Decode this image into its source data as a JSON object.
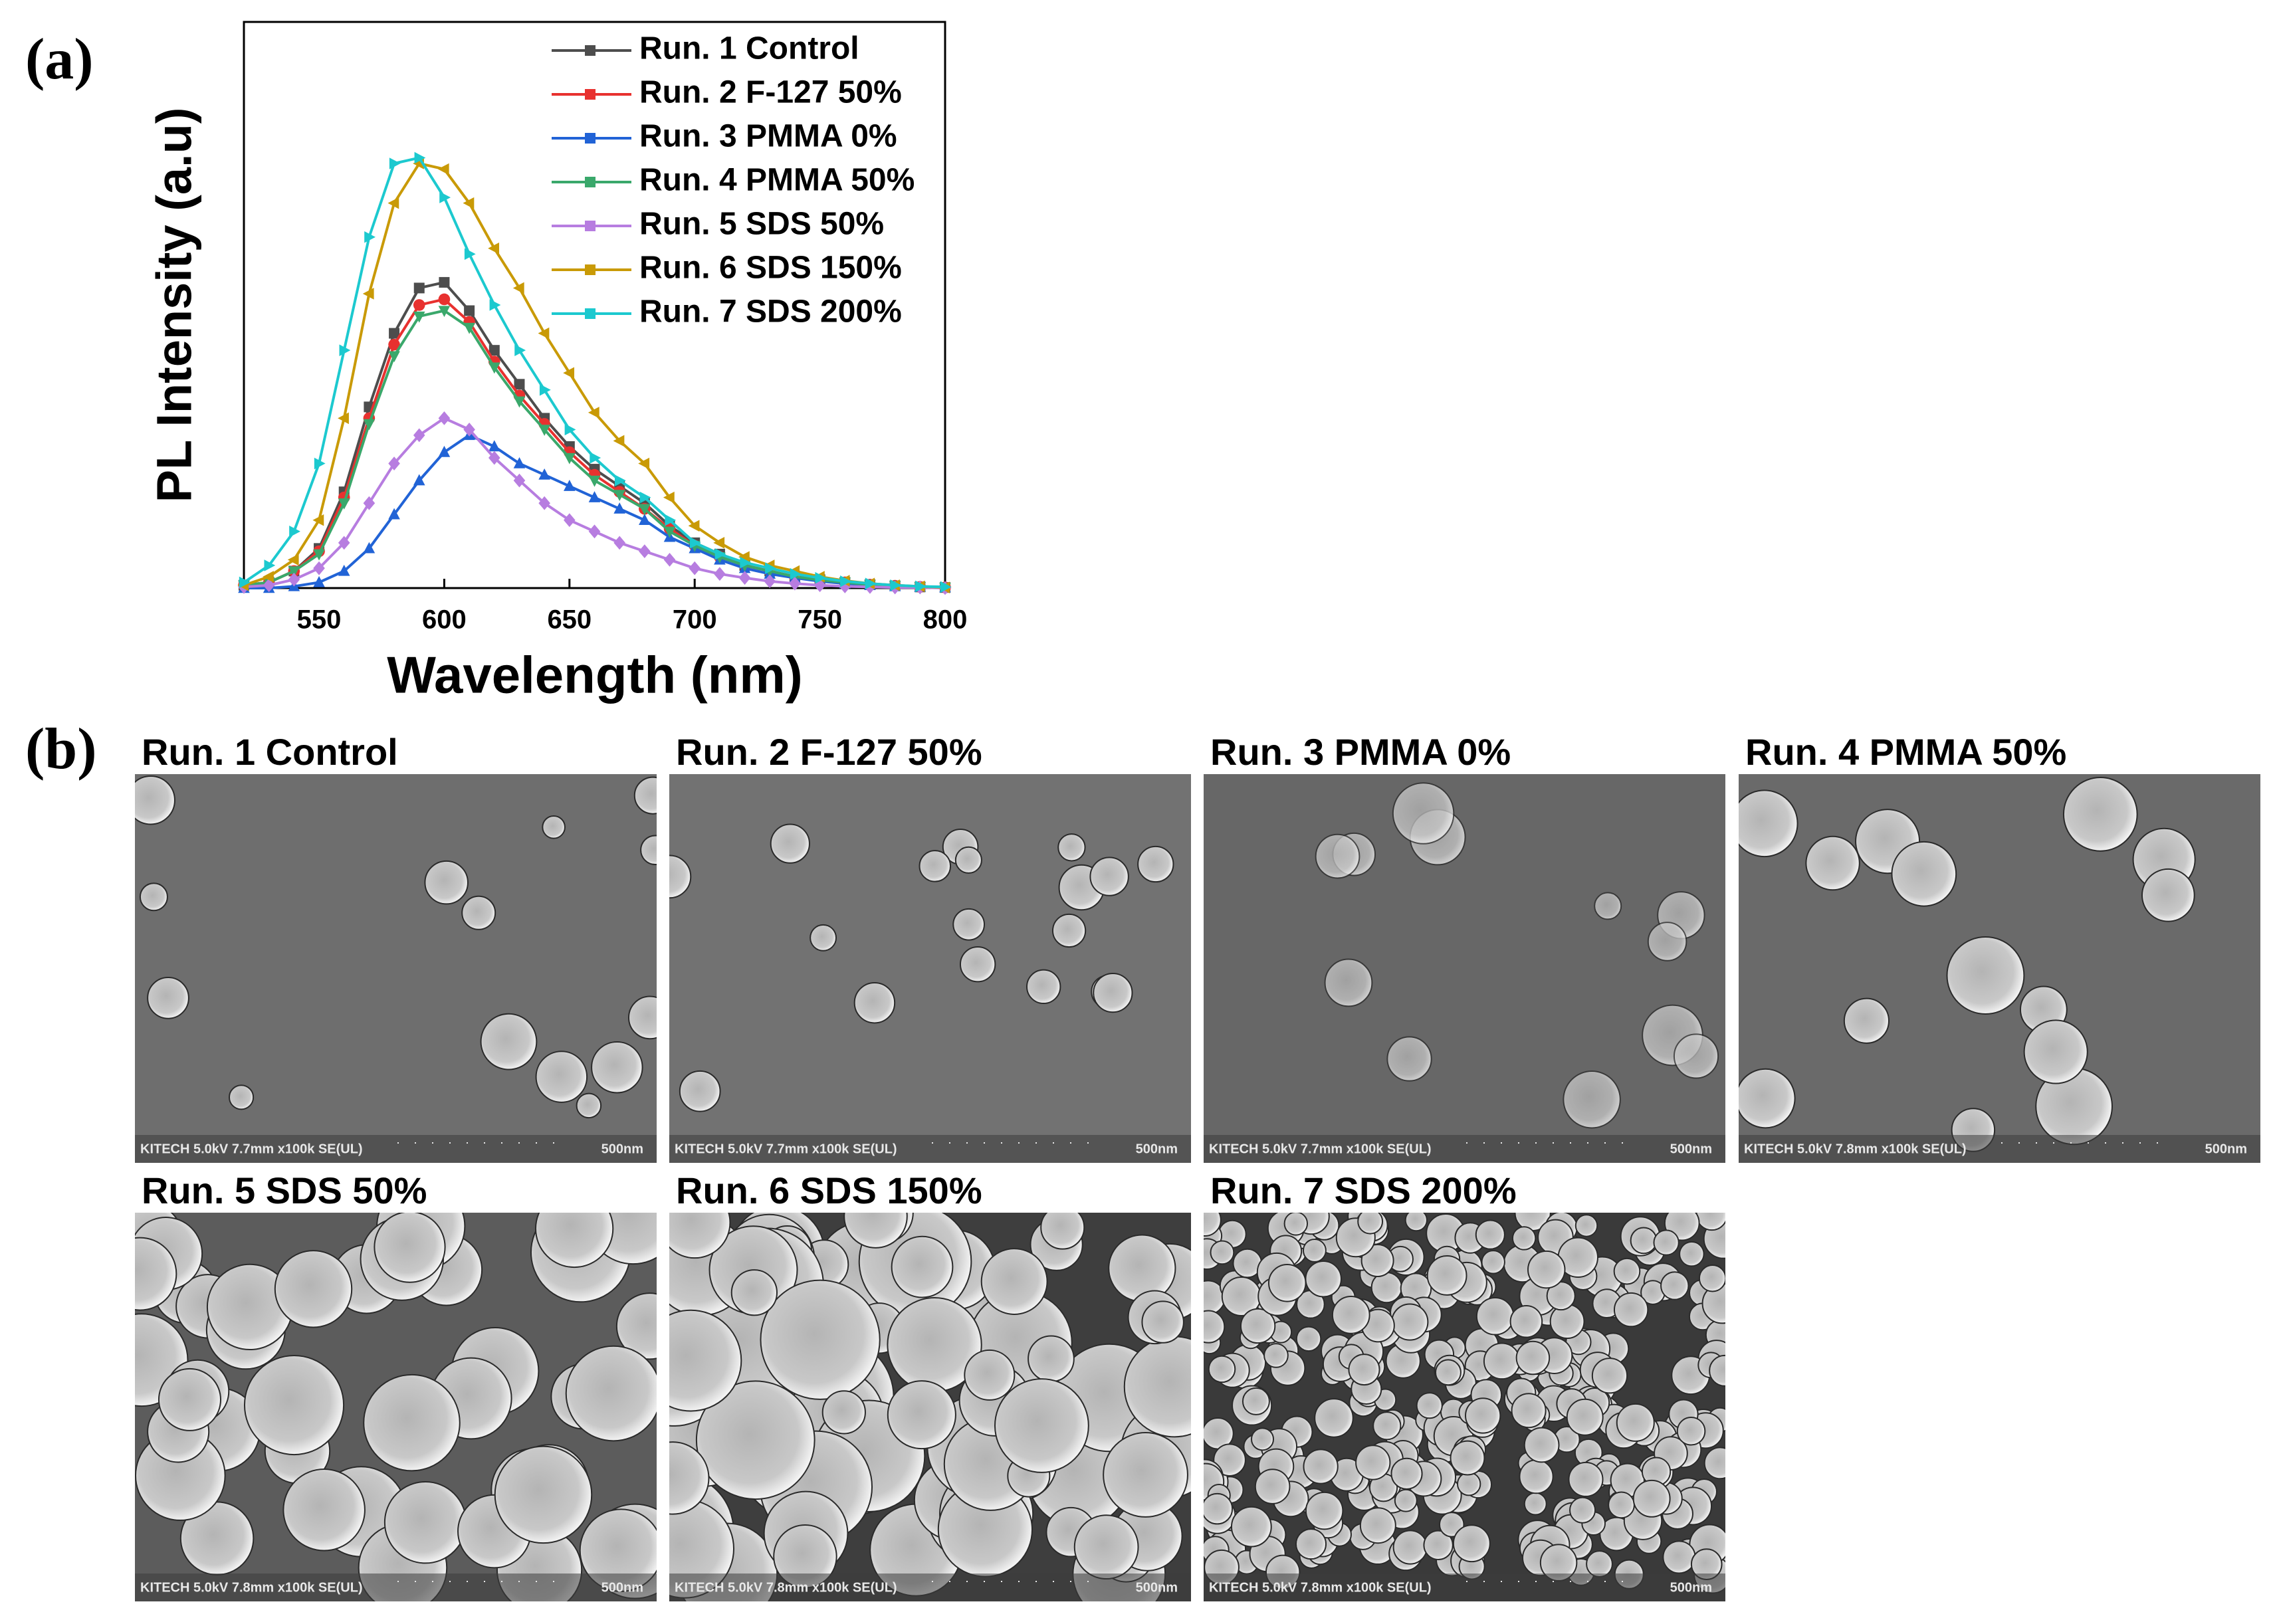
{
  "panel_a_label": "(a)",
  "chart_data": {
    "type": "line",
    "x_label": "Wavelength (nm)",
    "y_label": "PL Intensity (a.u)",
    "x": [
      520,
      530,
      540,
      550,
      560,
      570,
      580,
      590,
      600,
      610,
      620,
      630,
      640,
      650,
      660,
      670,
      680,
      690,
      700,
      710,
      720,
      730,
      740,
      750,
      760,
      770,
      780,
      790,
      800
    ],
    "xlim": [
      520,
      800
    ],
    "xticks": [
      550,
      600,
      650,
      700,
      750,
      800
    ],
    "ylim": [
      0,
      1
    ],
    "legend": "upper-right",
    "series": [
      {
        "name": "Run. 1 Control",
        "color": "#4d4d4d",
        "marker": "square",
        "values": [
          0.005,
          0.01,
          0.03,
          0.07,
          0.17,
          0.32,
          0.45,
          0.53,
          0.54,
          0.49,
          0.42,
          0.36,
          0.3,
          0.25,
          0.21,
          0.18,
          0.15,
          0.11,
          0.08,
          0.06,
          0.04,
          0.03,
          0.02,
          0.015,
          0.01,
          0.006,
          0.004,
          0.002,
          0.001
        ]
      },
      {
        "name": "Run. 2 F-127 50%",
        "color": "#e8312f",
        "marker": "circle",
        "values": [
          0.005,
          0.01,
          0.03,
          0.065,
          0.16,
          0.3,
          0.43,
          0.5,
          0.51,
          0.47,
          0.4,
          0.34,
          0.29,
          0.24,
          0.2,
          0.17,
          0.14,
          0.105,
          0.075,
          0.055,
          0.04,
          0.03,
          0.02,
          0.014,
          0.01,
          0.006,
          0.004,
          0.002,
          0.001
        ]
      },
      {
        "name": "Run. 3 PMMA 0%",
        "color": "#2163d6",
        "marker": "triangle-up",
        "values": [
          0,
          0,
          0.003,
          0.01,
          0.03,
          0.07,
          0.13,
          0.19,
          0.24,
          0.27,
          0.25,
          0.22,
          0.2,
          0.18,
          0.16,
          0.14,
          0.12,
          0.09,
          0.07,
          0.05,
          0.035,
          0.025,
          0.018,
          0.012,
          0.008,
          0.005,
          0.003,
          0.002,
          0.001
        ]
      },
      {
        "name": "Run. 4 PMMA 50%",
        "color": "#3aa86b",
        "marker": "triangle-down",
        "values": [
          0.005,
          0.01,
          0.03,
          0.06,
          0.15,
          0.29,
          0.41,
          0.48,
          0.49,
          0.46,
          0.39,
          0.33,
          0.28,
          0.23,
          0.19,
          0.165,
          0.14,
          0.1,
          0.075,
          0.055,
          0.04,
          0.03,
          0.02,
          0.014,
          0.01,
          0.006,
          0.004,
          0.002,
          0.001
        ]
      },
      {
        "name": "Run. 5 SDS 50%",
        "color": "#b77de0",
        "marker": "diamond",
        "values": [
          0.002,
          0.005,
          0.015,
          0.035,
          0.08,
          0.15,
          0.22,
          0.27,
          0.3,
          0.28,
          0.23,
          0.19,
          0.15,
          0.12,
          0.1,
          0.08,
          0.065,
          0.05,
          0.035,
          0.025,
          0.018,
          0.012,
          0.008,
          0.005,
          0.003,
          0.002,
          0.001,
          0.001,
          0
        ]
      },
      {
        "name": "Run. 6 SDS 150%",
        "color": "#c99a06",
        "marker": "triangle-left",
        "values": [
          0.005,
          0.02,
          0.05,
          0.12,
          0.3,
          0.52,
          0.68,
          0.75,
          0.74,
          0.68,
          0.6,
          0.53,
          0.45,
          0.38,
          0.31,
          0.26,
          0.22,
          0.16,
          0.11,
          0.08,
          0.055,
          0.04,
          0.03,
          0.02,
          0.013,
          0.008,
          0.005,
          0.003,
          0.001
        ]
      },
      {
        "name": "Run. 7 SDS 200%",
        "color": "#1cc9cf",
        "marker": "triangle-right",
        "values": [
          0.01,
          0.04,
          0.1,
          0.22,
          0.42,
          0.62,
          0.75,
          0.76,
          0.69,
          0.59,
          0.5,
          0.42,
          0.35,
          0.28,
          0.23,
          0.19,
          0.16,
          0.12,
          0.08,
          0.06,
          0.045,
          0.035,
          0.025,
          0.018,
          0.012,
          0.008,
          0.005,
          0.003,
          0.002
        ]
      }
    ]
  },
  "panel_b_label": "(b)",
  "sem_images": [
    {
      "title": "Run. 1 Control",
      "footer": "KITECH 5.0kV 7.7mm x100k SE(UL)",
      "scale": "500nm"
    },
    {
      "title": "Run. 2 F-127 50%",
      "footer": "KITECH 5.0kV 7.7mm x100k SE(UL)",
      "scale": "500nm"
    },
    {
      "title": "Run. 3 PMMA 0%",
      "footer": "KITECH 5.0kV 7.7mm x100k SE(UL)",
      "scale": "500nm"
    },
    {
      "title": "Run. 4 PMMA 50%",
      "footer": "KITECH 5.0kV 7.8mm x100k SE(UL)",
      "scale": "500nm"
    },
    {
      "title": "Run. 5 SDS 50%",
      "footer": "KITECH 5.0kV 7.8mm x100k SE(UL)",
      "scale": "500nm"
    },
    {
      "title": "Run. 6 SDS 150%",
      "footer": "KITECH 5.0kV 7.8mm x100k SE(UL)",
      "scale": "500nm"
    },
    {
      "title": "Run. 7 SDS 200%",
      "footer": "KITECH 5.0kV 7.8mm x100k SE(UL)",
      "scale": "500nm"
    }
  ]
}
